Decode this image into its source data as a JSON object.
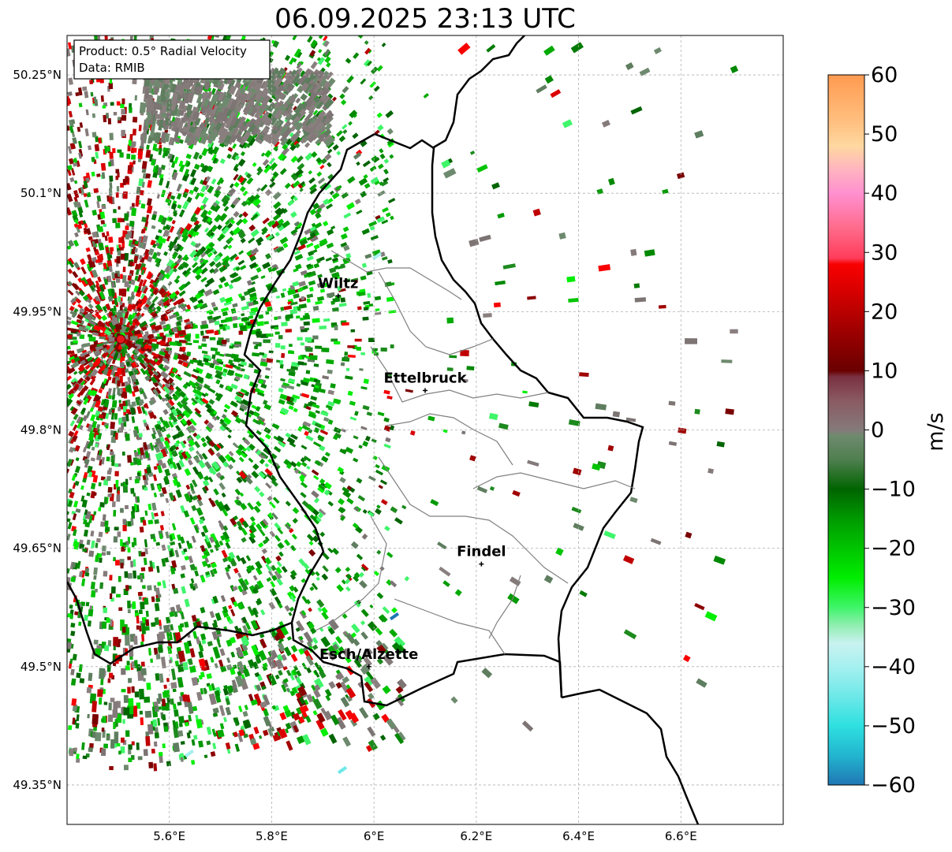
{
  "title": "06.09.2025 23:13 UTC",
  "info": {
    "product": "Product: 0.5° Radial Velocity",
    "source": "Data: RMIB"
  },
  "axes": {
    "lon_range": [
      5.4,
      6.8
    ],
    "lat_range": [
      49.3,
      50.3
    ],
    "lon_ticks": [
      {
        "value": 5.6,
        "label": "5.6°E"
      },
      {
        "value": 5.8,
        "label": "5.8°E"
      },
      {
        "value": 6.0,
        "label": "6°E"
      },
      {
        "value": 6.2,
        "label": "6.2°E"
      },
      {
        "value": 6.4,
        "label": "6.4°E"
      },
      {
        "value": 6.6,
        "label": "6.6°E"
      }
    ],
    "lat_ticks": [
      {
        "value": 50.25,
        "label": "50.25°N"
      },
      {
        "value": 50.1,
        "label": "50.1°N"
      },
      {
        "value": 49.95,
        "label": "49.95°N"
      },
      {
        "value": 49.8,
        "label": "49.8°N"
      },
      {
        "value": 49.65,
        "label": "49.65°N"
      },
      {
        "value": 49.5,
        "label": "49.5°N"
      },
      {
        "value": 49.35,
        "label": "49.35°N"
      }
    ]
  },
  "cities": [
    {
      "name": "Wiltz",
      "lon": 5.93,
      "lat": 49.97
    },
    {
      "name": "Ettelbruck",
      "lon": 6.1,
      "lat": 49.85
    },
    {
      "name": "Findel",
      "lon": 6.21,
      "lat": 49.63
    },
    {
      "name": "Esch/Alzette",
      "lon": 5.99,
      "lat": 49.5
    }
  ],
  "radar": {
    "lon": 5.505,
    "lat": 49.915
  },
  "colorbar": {
    "label": "m/s",
    "min": -60,
    "max": 60,
    "ticks": [
      {
        "value": 60,
        "label": "60"
      },
      {
        "value": 50,
        "label": "50"
      },
      {
        "value": 40,
        "label": "40"
      },
      {
        "value": 30,
        "label": "30"
      },
      {
        "value": 20,
        "label": "20"
      },
      {
        "value": 10,
        "label": "10"
      },
      {
        "value": 0,
        "label": "0"
      },
      {
        "value": -10,
        "label": "−10"
      },
      {
        "value": -20,
        "label": "−20"
      },
      {
        "value": -30,
        "label": "−30"
      },
      {
        "value": -40,
        "label": "−40"
      },
      {
        "value": -50,
        "label": "−50"
      },
      {
        "value": -60,
        "label": "−60"
      }
    ],
    "stops": [
      {
        "v": -60,
        "c": "#1f77b4"
      },
      {
        "v": -55,
        "c": "#22b5cf"
      },
      {
        "v": -50,
        "c": "#2ee0e0"
      },
      {
        "v": -45,
        "c": "#6ee8e8"
      },
      {
        "v": -40,
        "c": "#a6f0f0"
      },
      {
        "v": -36,
        "c": "#c9f2f0"
      },
      {
        "v": -33,
        "c": "#90eeb0"
      },
      {
        "v": -30,
        "c": "#3ff56a"
      },
      {
        "v": -25,
        "c": "#00ee00"
      },
      {
        "v": -20,
        "c": "#00c400"
      },
      {
        "v": -15,
        "c": "#009a00"
      },
      {
        "v": -10,
        "c": "#006400"
      },
      {
        "v": -5,
        "c": "#4f7f4f"
      },
      {
        "v": -1,
        "c": "#6e8a6e"
      },
      {
        "v": 0,
        "c": "#857a7a"
      },
      {
        "v": 5,
        "c": "#8a5a62"
      },
      {
        "v": 9,
        "c": "#7a3040"
      },
      {
        "v": 10,
        "c": "#6a0000"
      },
      {
        "v": 17,
        "c": "#a00000"
      },
      {
        "v": 24,
        "c": "#dc0000"
      },
      {
        "v": 28,
        "c": "#f80000"
      },
      {
        "v": 29,
        "c": "#ff3c5a"
      },
      {
        "v": 34,
        "c": "#ff6a8a"
      },
      {
        "v": 40,
        "c": "#ff90d0"
      },
      {
        "v": 44,
        "c": "#ffb4c0"
      },
      {
        "v": 48,
        "c": "#ffd8a0"
      },
      {
        "v": 52,
        "c": "#ffc080"
      },
      {
        "v": 60,
        "c": "#ff9a50"
      }
    ]
  }
}
